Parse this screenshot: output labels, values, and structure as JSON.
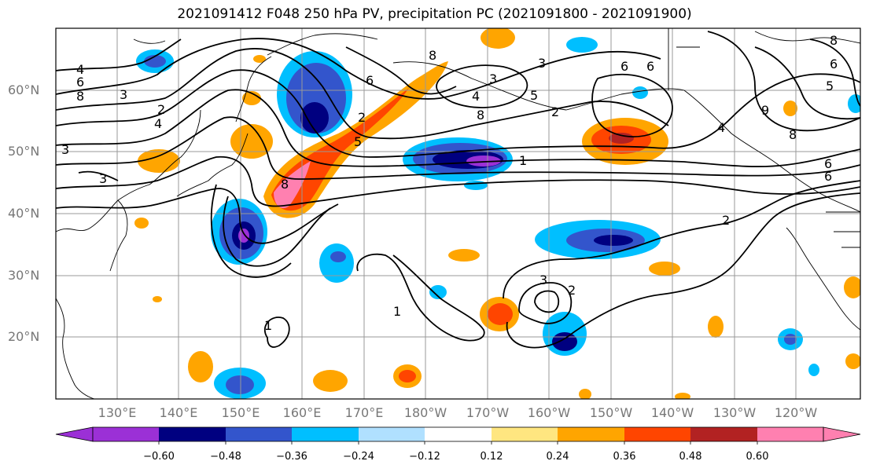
{
  "title": "2021091412 F048 250 hPa PV, precipitation PC (2021091800 - 2021091900)",
  "map": {
    "projection": "cylindrical",
    "lon_range": [
      120,
      252
    ],
    "lat_range": [
      10,
      70
    ],
    "grid_step_deg": 10,
    "lat_labels": [
      "60°N",
      "50°N",
      "40°N",
      "30°N",
      "20°N"
    ],
    "lon_labels": [
      "130°E",
      "140°E",
      "150°E",
      "160°E",
      "170°E",
      "180°W",
      "170°W",
      "160°W",
      "150°W",
      "140°W",
      "130°W",
      "120°W"
    ],
    "contour_labels": [
      "4",
      "6",
      "8",
      "3",
      "2",
      "4",
      "3",
      "2",
      "6",
      "8",
      "1",
      "2",
      "3",
      "8",
      "6",
      "3",
      "4",
      "5",
      "8",
      "6",
      "8",
      "6",
      "5",
      "6",
      "4",
      "8",
      "9",
      "6",
      "5",
      "2",
      "1",
      "3",
      "2",
      "1",
      "3"
    ]
  },
  "colorbar": {
    "ticks": [
      "−0.60",
      "−0.48",
      "−0.36",
      "−0.24",
      "−0.12",
      "0.12",
      "0.24",
      "0.36",
      "0.48",
      "0.60"
    ],
    "colors": [
      "#9b30d6",
      "#000080",
      "#3355cc",
      "#00bfff",
      "#b0e0ff",
      "#ffffff",
      "#ffe680",
      "#ffa500",
      "#ff4500",
      "#b22222",
      "#ff80b0"
    ],
    "extend": "both"
  }
}
